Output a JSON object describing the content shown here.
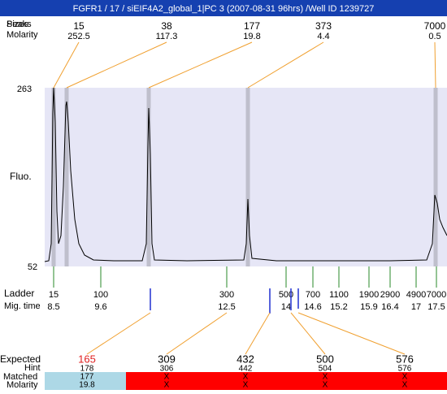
{
  "header": {
    "title": "FGFR1 / 17 / siEIF4A2_global_1|PC 3 (2007-08-31 96hrs) /Well ID 1239727"
  },
  "peaks": {
    "row_labels": [
      "Peaks",
      "Sizes"
    ],
    "molarity_label": "Molarity",
    "sizes": [
      15,
      38,
      177,
      373,
      7000
    ],
    "molarity": [
      252.5,
      117.3,
      19.8,
      4.4,
      0.5
    ]
  },
  "plot": {
    "y_label": "Fluo.",
    "y_max": 263,
    "y_min": 52
  },
  "ladder": {
    "label": "Ladder",
    "mig_label": "Mig. time",
    "sizes": [
      15,
      100,
      300,
      500,
      700,
      1100,
      1900,
      2900,
      4900,
      7000
    ],
    "mig_times": [
      8.5,
      9.6,
      12.5,
      14,
      14.6,
      15.2,
      15.9,
      16.4,
      17,
      17.5
    ]
  },
  "expected": {
    "label": "Expected",
    "values": [
      165,
      309,
      432,
      500,
      576
    ],
    "hint_label": "Hint",
    "hint": [
      178,
      306,
      442,
      504,
      576
    ],
    "matched_label": "Matched",
    "matched": [
      177,
      "X",
      "X",
      "X",
      "X"
    ],
    "molarity_label": "Molarity",
    "molarity": [
      19.8,
      "X",
      "X",
      "X",
      "X"
    ]
  }
}
